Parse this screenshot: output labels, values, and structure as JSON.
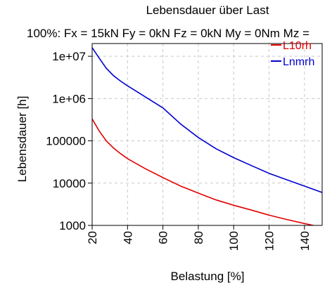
{
  "chart_data": {
    "type": "line",
    "title": "Lebensdauer über Last",
    "subtitle": "100%: Fx = 15kN Fy = 0kN Fz = 0kN My = 0Nm Mz =",
    "xlabel": "Belastung [%]",
    "ylabel": "Lebensdauer [h]",
    "xlim": [
      20,
      150
    ],
    "ylim": [
      1000,
      20000000
    ],
    "yscale": "log",
    "grid": true,
    "legend_position": "top-right",
    "x_ticks": [
      20,
      40,
      60,
      80,
      100,
      120,
      140
    ],
    "x_tick_labels": [
      "20",
      "40",
      "60",
      "80",
      "100",
      "120",
      "140"
    ],
    "y_ticks": [
      1000,
      10000,
      100000,
      1000000,
      10000000
    ],
    "y_tick_labels": [
      "1000",
      "10000",
      "100000",
      "1e+06",
      "1e+07"
    ],
    "series": [
      {
        "name": "L10rh",
        "color": "#e00000",
        "x": [
          20,
          24,
          28,
          32,
          36,
          40,
          50,
          60,
          70,
          80,
          90,
          100,
          110,
          120,
          130,
          140,
          150
        ],
        "y": [
          330000,
          170000,
          100000,
          68000,
          50000,
          38000,
          22000,
          13500,
          8500,
          5800,
          4000,
          3000,
          2300,
          1750,
          1380,
          1110,
          900
        ]
      },
      {
        "name": "Lnmrh",
        "color": "#0000d0",
        "x": [
          20,
          24,
          28,
          32,
          36,
          40,
          50,
          60,
          70,
          80,
          90,
          100,
          110,
          120,
          130,
          140,
          150
        ],
        "y": [
          16000000,
          9000000,
          5200000,
          3500000,
          2600000,
          2000000,
          1100000,
          600000,
          250000,
          120000,
          65000,
          40000,
          26000,
          17000,
          12000,
          8500,
          6000
        ]
      }
    ]
  }
}
